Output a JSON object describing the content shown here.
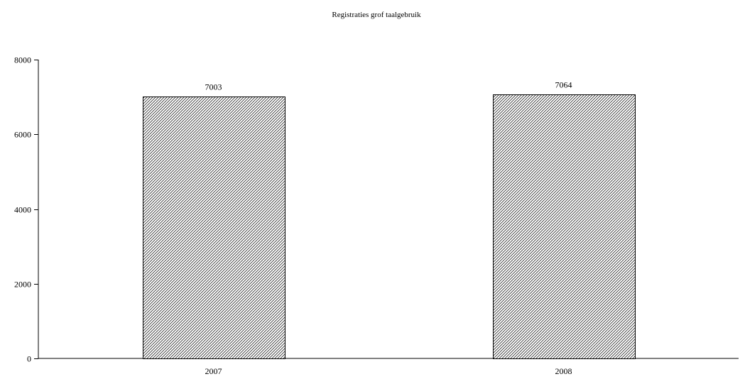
{
  "chart_data": {
    "type": "bar",
    "title": "Registraties grof taalgebruik",
    "xlabel": "",
    "ylabel": "",
    "categories": [
      "2007",
      "2008"
    ],
    "values": [
      7003,
      7064
    ],
    "data_labels": [
      "7003",
      "7064"
    ],
    "ylim": [
      0,
      8000
    ],
    "yticks": [
      0,
      2000,
      4000,
      6000,
      8000
    ],
    "ytick_labels": [
      "0",
      "2000",
      "4000",
      "6000",
      "8000"
    ],
    "grid": false,
    "legend": "none",
    "bar_fill": "diagonal-hatch",
    "bar_color": "#000000"
  }
}
